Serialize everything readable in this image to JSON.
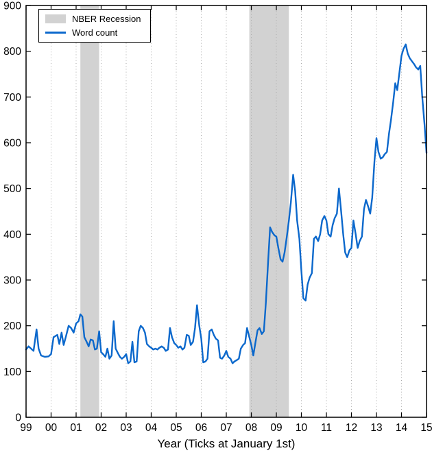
{
  "figure": {
    "background_color": "#ffffff",
    "border_color": "#000000"
  },
  "chart_data": {
    "type": "line",
    "title": "",
    "xlabel": "Year (Ticks at January 1st)",
    "ylabel": "",
    "xlim": [
      1999,
      2015
    ],
    "ylim": [
      0,
      900
    ],
    "x_ticks": [
      1999,
      2000,
      2001,
      2002,
      2003,
      2004,
      2005,
      2006,
      2007,
      2008,
      2009,
      2010,
      2011,
      2012,
      2013,
      2014,
      2015
    ],
    "x_tick_labels": [
      "99",
      "00",
      "01",
      "02",
      "03",
      "04",
      "05",
      "06",
      "07",
      "08",
      "09",
      "10",
      "11",
      "12",
      "13",
      "14",
      "15"
    ],
    "y_ticks": [
      0,
      100,
      200,
      300,
      400,
      500,
      600,
      700,
      800,
      900
    ],
    "grid": "vertical-dotted",
    "grid_color": "#aaaaaa",
    "band_color": "#d2d2d2",
    "recession_bands": [
      [
        2001.17,
        2001.92
      ],
      [
        2007.92,
        2009.5
      ]
    ],
    "legend": {
      "position": "top-left",
      "entries": [
        {
          "label": "NBER Recession",
          "type": "patch",
          "color": "#d2d2d2"
        },
        {
          "label": "Word count",
          "type": "line",
          "color": "#0b68cc"
        }
      ]
    },
    "series": [
      {
        "name": "Word count",
        "color": "#0b68cc",
        "x": [
          1999.0,
          1999.1,
          1999.2,
          1999.3,
          1999.42,
          1999.5,
          1999.6,
          1999.75,
          1999.9,
          2000.0,
          2000.1,
          2000.25,
          2000.33,
          2000.42,
          2000.5,
          2000.6,
          2000.7,
          2000.8,
          2000.9,
          2001.0,
          2001.1,
          2001.17,
          2001.25,
          2001.33,
          2001.42,
          2001.5,
          2001.58,
          2001.67,
          2001.75,
          2001.83,
          2001.92,
          2002.0,
          2002.08,
          2002.17,
          2002.25,
          2002.33,
          2002.42,
          2002.5,
          2002.58,
          2002.67,
          2002.75,
          2002.83,
          2002.92,
          2003.0,
          2003.08,
          2003.17,
          2003.25,
          2003.33,
          2003.42,
          2003.5,
          2003.58,
          2003.67,
          2003.75,
          2003.83,
          2003.92,
          2004.0,
          2004.08,
          2004.17,
          2004.25,
          2004.33,
          2004.42,
          2004.5,
          2004.58,
          2004.67,
          2004.75,
          2004.83,
          2004.92,
          2005.0,
          2005.08,
          2005.17,
          2005.25,
          2005.33,
          2005.42,
          2005.5,
          2005.58,
          2005.67,
          2005.75,
          2005.83,
          2005.92,
          2006.0,
          2006.08,
          2006.17,
          2006.25,
          2006.33,
          2006.42,
          2006.5,
          2006.58,
          2006.67,
          2006.75,
          2006.83,
          2006.92,
          2007.0,
          2007.08,
          2007.17,
          2007.25,
          2007.33,
          2007.42,
          2007.5,
          2007.58,
          2007.67,
          2007.75,
          2007.83,
          2007.92,
          2008.0,
          2008.08,
          2008.17,
          2008.25,
          2008.33,
          2008.42,
          2008.5,
          2008.58,
          2008.67,
          2008.75,
          2008.83,
          2008.92,
          2009.0,
          2009.08,
          2009.17,
          2009.25,
          2009.33,
          2009.42,
          2009.5,
          2009.58,
          2009.67,
          2009.75,
          2009.83,
          2009.92,
          2010.0,
          2010.08,
          2010.17,
          2010.25,
          2010.33,
          2010.42,
          2010.5,
          2010.58,
          2010.67,
          2010.75,
          2010.83,
          2010.92,
          2011.0,
          2011.08,
          2011.17,
          2011.25,
          2011.33,
          2011.42,
          2011.5,
          2011.58,
          2011.67,
          2011.75,
          2011.83,
          2011.92,
          2012.0,
          2012.08,
          2012.17,
          2012.25,
          2012.33,
          2012.42,
          2012.5,
          2012.58,
          2012.67,
          2012.75,
          2012.83,
          2012.92,
          2013.0,
          2013.08,
          2013.17,
          2013.25,
          2013.33,
          2013.42,
          2013.5,
          2013.58,
          2013.67,
          2013.75,
          2013.83,
          2013.92,
          2014.0,
          2014.08,
          2014.17,
          2014.25,
          2014.33,
          2014.42,
          2014.5,
          2014.58,
          2014.67,
          2014.75,
          2014.83,
          2014.92,
          2015.0
        ],
        "y": [
          148,
          155,
          150,
          145,
          192,
          150,
          135,
          132,
          133,
          138,
          175,
          180,
          160,
          185,
          158,
          178,
          200,
          195,
          185,
          205,
          210,
          225,
          220,
          175,
          165,
          155,
          170,
          168,
          148,
          150,
          188,
          142,
          138,
          132,
          150,
          128,
          135,
          210,
          150,
          140,
          132,
          128,
          132,
          138,
          118,
          122,
          165,
          120,
          122,
          188,
          200,
          195,
          185,
          160,
          155,
          152,
          148,
          150,
          148,
          152,
          155,
          152,
          145,
          148,
          195,
          175,
          162,
          158,
          152,
          155,
          148,
          152,
          180,
          178,
          158,
          165,
          195,
          245,
          200,
          172,
          120,
          122,
          128,
          188,
          192,
          180,
          172,
          168,
          130,
          128,
          135,
          145,
          132,
          128,
          118,
          122,
          125,
          128,
          150,
          158,
          162,
          195,
          175,
          158,
          135,
          165,
          190,
          195,
          182,
          188,
          250,
          340,
          415,
          405,
          398,
          395,
          370,
          345,
          340,
          360,
          395,
          430,
          470,
          530,
          495,
          430,
          390,
          320,
          260,
          255,
          290,
          305,
          315,
          390,
          395,
          385,
          400,
          430,
          440,
          430,
          400,
          395,
          420,
          435,
          445,
          500,
          455,
          400,
          360,
          350,
          365,
          370,
          430,
          400,
          370,
          385,
          395,
          455,
          475,
          460,
          445,
          480,
          560,
          610,
          580,
          565,
          568,
          575,
          580,
          620,
          650,
          690,
          730,
          715,
          755,
          790,
          805,
          815,
          795,
          785,
          778,
          772,
          765,
          760,
          768,
          700,
          640,
          578
        ]
      }
    ]
  }
}
